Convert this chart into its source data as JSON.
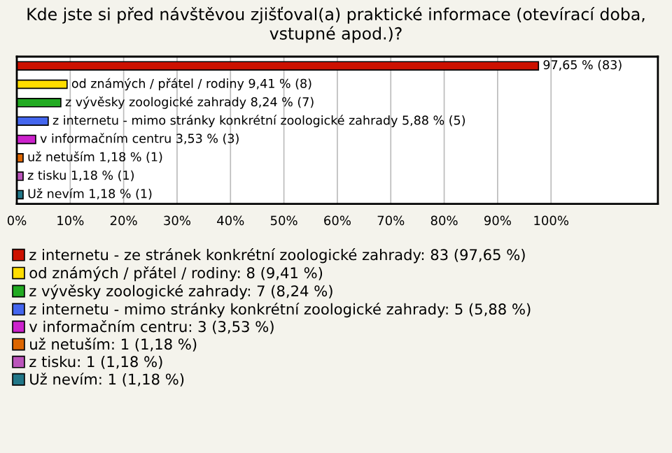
{
  "chart_data": {
    "type": "bar",
    "orientation": "horizontal",
    "title": "Kde jste si před návštěvou zjišťoval(a) praktické informace (otevírací doba, vstupné apod.)?",
    "categories": [
      null,
      null,
      null,
      null,
      null,
      null,
      null,
      null
    ],
    "series": [
      {
        "name": "z internetu - ze stránek konkrétní zoologické zahrady: 83 (97,65 %)",
        "color": "#cc1100",
        "values": [
          97.65,
          null,
          null,
          null,
          null,
          null,
          null,
          null
        ],
        "value_labels": [
          "97,65 % (83)",
          null,
          null,
          null,
          null,
          null,
          null,
          null
        ]
      },
      {
        "name": "od známých / přátel / rodiny: 8 (9,41 %)",
        "color": "#ffdd00",
        "values": [
          null,
          9.41,
          null,
          null,
          null,
          null,
          null,
          null
        ],
        "value_labels": [
          null,
          "od známých / přátel / rodiny 9,41 % (8)",
          null,
          null,
          null,
          null,
          null,
          null
        ]
      },
      {
        "name": "z vývěsky zoologické zahrady: 7 (8,24 %)",
        "color": "#22aa22",
        "values": [
          null,
          null,
          8.24,
          null,
          null,
          null,
          null,
          null
        ],
        "value_labels": [
          null,
          null,
          "z vývěsky zoologické zahrady 8,24 % (7)",
          null,
          null,
          null,
          null,
          null
        ]
      },
      {
        "name": "z internetu - mimo stránky konkrétní zoologické zahrady: 5 (5,88 %)",
        "color": "#4466ee",
        "values": [
          null,
          null,
          null,
          5.88,
          null,
          null,
          null,
          null
        ],
        "value_labels": [
          null,
          null,
          null,
          "z internetu - mimo stránky konkrétní zoologické zahrady 5,88 % (5)",
          null,
          null,
          null,
          null
        ]
      },
      {
        "name": "v informačním centru: 3 (3,53 %)",
        "color": "#cc22cc",
        "values": [
          null,
          null,
          null,
          null,
          3.53,
          null,
          null,
          null
        ],
        "value_labels": [
          null,
          null,
          null,
          null,
          "v informačním centru 3,53 % (3)",
          null,
          null,
          null
        ]
      },
      {
        "name": "už netuším: 1 (1,18 %)",
        "color": "#dd6600",
        "values": [
          null,
          null,
          null,
          null,
          null,
          1.18,
          null,
          null
        ],
        "value_labels": [
          null,
          null,
          null,
          null,
          null,
          "už netuším 1,18 % (1)",
          null,
          null
        ]
      },
      {
        "name": "z tisku: 1 (1,18 %)",
        "color": "#bb55bb",
        "values": [
          null,
          null,
          null,
          null,
          null,
          null,
          1.18,
          null
        ],
        "value_labels": [
          null,
          null,
          null,
          null,
          null,
          null,
          "z tisku 1,18 % (1)",
          null
        ]
      },
      {
        "name": "Už nevím: 1 (1,18 %)",
        "color": "#227788",
        "values": [
          null,
          null,
          null,
          null,
          null,
          null,
          null,
          1.18
        ],
        "value_labels": [
          null,
          null,
          null,
          null,
          null,
          null,
          null,
          "Už nevím 1,18 % (1)"
        ]
      }
    ],
    "xlim": [
      0,
      120
    ],
    "xticks": [
      {
        "value": 0,
        "label": "0%"
      },
      {
        "value": 10,
        "label": "10%"
      },
      {
        "value": 20,
        "label": "20%"
      },
      {
        "value": 30,
        "label": "30%"
      },
      {
        "value": 40,
        "label": "40%"
      },
      {
        "value": 50,
        "label": "50%"
      },
      {
        "value": 60,
        "label": "60%"
      },
      {
        "value": 70,
        "label": "70%"
      },
      {
        "value": 80,
        "label": "80%"
      },
      {
        "value": 90,
        "label": "90%"
      },
      {
        "value": 100,
        "label": "100%"
      }
    ],
    "grid": "x",
    "legend": "bottom"
  }
}
